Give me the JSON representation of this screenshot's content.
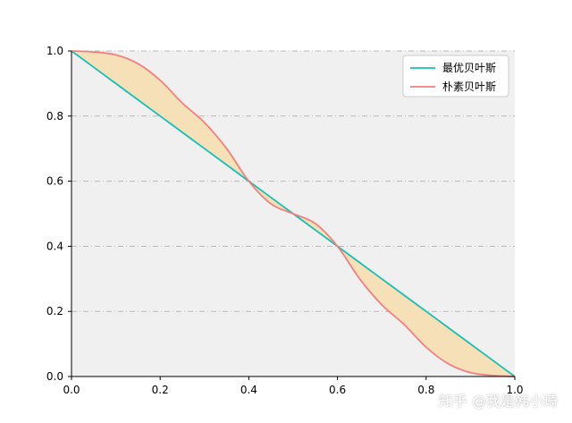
{
  "chart_data": {
    "type": "line",
    "title": "",
    "xlabel": "",
    "ylabel": "",
    "xlim": [
      0,
      1
    ],
    "ylim": [
      0,
      1
    ],
    "xticks": [
      "0.0",
      "0.2",
      "0.4",
      "0.6",
      "0.8",
      "1.0"
    ],
    "yticks": [
      "0.0",
      "0.2",
      "0.4",
      "0.6",
      "0.8",
      "1.0"
    ],
    "grid": "horizontal dash-dot",
    "legend_position": "top-right",
    "series": [
      {
        "name": "最优贝叶斯",
        "color": "#17bfb5",
        "x": [
          0,
          0.05,
          0.1,
          0.15,
          0.2,
          0.25,
          0.3,
          0.35,
          0.4,
          0.45,
          0.5,
          0.55,
          0.6,
          0.65,
          0.7,
          0.75,
          0.8,
          0.85,
          0.9,
          0.95,
          1
        ],
        "y": [
          1,
          0.95,
          0.9,
          0.85,
          0.8,
          0.75,
          0.7,
          0.65,
          0.6,
          0.55,
          0.5,
          0.45,
          0.4,
          0.35,
          0.3,
          0.25,
          0.2,
          0.15,
          0.1,
          0.05,
          0
        ]
      },
      {
        "name": "朴素贝叶斯",
        "color": "#f08080",
        "x": [
          0,
          0.05,
          0.1,
          0.15,
          0.2,
          0.25,
          0.3,
          0.35,
          0.4,
          0.45,
          0.5,
          0.55,
          0.6,
          0.65,
          0.7,
          0.75,
          0.8,
          0.85,
          0.9,
          0.95,
          1
        ],
        "y": [
          1,
          0.997,
          0.988,
          0.961,
          0.91,
          0.84,
          0.78,
          0.7,
          0.6,
          0.53,
          0.5,
          0.47,
          0.4,
          0.3,
          0.22,
          0.16,
          0.09,
          0.039,
          0.012,
          0.003,
          0
        ]
      }
    ],
    "fill_between": {
      "color": "#f5deb3",
      "between": [
        "最优贝叶斯",
        "朴素贝叶斯"
      ]
    }
  },
  "watermark": "知乎 @我是韩小琦",
  "colors": {
    "plot_background": "#f0f0f0",
    "grid": "#b8b8b8",
    "axis": "#000000"
  }
}
